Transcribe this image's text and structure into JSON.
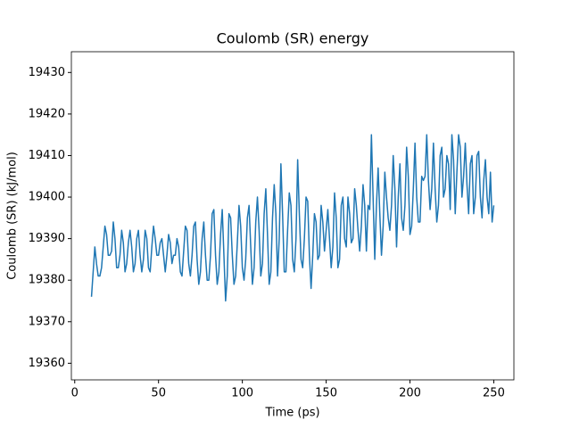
{
  "chart_data": {
    "type": "line",
    "title": "Coulomb (SR) energy",
    "x_label": "Time (ps)",
    "y_label": "Coulomb (SR) (kJ/mol)",
    "x": [
      10,
      11,
      12,
      13,
      14,
      15,
      16,
      17,
      18,
      19,
      20,
      21,
      22,
      23,
      24,
      25,
      26,
      27,
      28,
      29,
      30,
      31,
      32,
      33,
      34,
      35,
      36,
      37,
      38,
      39,
      40,
      41,
      42,
      43,
      44,
      45,
      46,
      47,
      48,
      49,
      50,
      51,
      52,
      53,
      54,
      55,
      56,
      57,
      58,
      59,
      60,
      61,
      62,
      63,
      64,
      65,
      66,
      67,
      68,
      69,
      70,
      71,
      72,
      73,
      74,
      75,
      76,
      77,
      78,
      79,
      80,
      81,
      82,
      83,
      84,
      85,
      86,
      87,
      88,
      89,
      90,
      91,
      92,
      93,
      94,
      95,
      96,
      97,
      98,
      99,
      100,
      101,
      102,
      103,
      104,
      105,
      106,
      107,
      108,
      109,
      110,
      111,
      112,
      113,
      114,
      115,
      116,
      117,
      118,
      119,
      120,
      121,
      122,
      123,
      124,
      125,
      126,
      127,
      128,
      129,
      130,
      131,
      132,
      133,
      134,
      135,
      136,
      137,
      138,
      139,
      140,
      141,
      142,
      143,
      144,
      145,
      146,
      147,
      148,
      149,
      150,
      151,
      152,
      153,
      154,
      155,
      156,
      157,
      158,
      159,
      160,
      161,
      162,
      163,
      164,
      165,
      166,
      167,
      168,
      169,
      170,
      171,
      172,
      173,
      174,
      175,
      176,
      177,
      178,
      179,
      180,
      181,
      182,
      183,
      184,
      185,
      186,
      187,
      188,
      189,
      190,
      191,
      192,
      193,
      194,
      195,
      196,
      197,
      198,
      199,
      200,
      201,
      202,
      203,
      204,
      205,
      206,
      207,
      208,
      209,
      210,
      211,
      212,
      213,
      214,
      215,
      216,
      217,
      218,
      219,
      220,
      221,
      222,
      223,
      224,
      225,
      226,
      227,
      228,
      229,
      230,
      231,
      232,
      233,
      234,
      235,
      236,
      237,
      238,
      239,
      240,
      241,
      242,
      243,
      244,
      245,
      246,
      247,
      248,
      249,
      250
    ],
    "series": [
      {
        "name": "Coulomb (SR)",
        "color": "#1f77b4",
        "values": [
          19376,
          19382,
          19388,
          19384,
          19381,
          19381,
          19383,
          19388,
          19393,
          19391,
          19386,
          19386,
          19387,
          19394,
          19390,
          19383,
          19383,
          19386,
          19392,
          19389,
          19382,
          19384,
          19389,
          19392,
          19388,
          19382,
          19384,
          19390,
          19392,
          19386,
          19382,
          19385,
          19392,
          19390,
          19383,
          19382,
          19388,
          19393,
          19390,
          19386,
          19386,
          19389,
          19390,
          19386,
          19382,
          19386,
          19391,
          19389,
          19384,
          19386,
          19386,
          19390,
          19388,
          19382,
          19381,
          19387,
          19393,
          19392,
          19384,
          19381,
          19386,
          19393,
          19394,
          19385,
          19379,
          19382,
          19390,
          19394,
          19386,
          19380,
          19380,
          19386,
          19396,
          19397,
          19386,
          19379,
          19382,
          19391,
          19397,
          19386,
          19375,
          19381,
          19396,
          19395,
          19386,
          19379,
          19381,
          19389,
          19398,
          19393,
          19383,
          19380,
          19385,
          19395,
          19398,
          19388,
          19379,
          19383,
          19394,
          19400,
          19392,
          19381,
          19384,
          19396,
          19402,
          19391,
          19379,
          19382,
          19395,
          19403,
          19396,
          19381,
          19390,
          19408,
          19396,
          19382,
          19382,
          19392,
          19401,
          19398,
          19385,
          19382,
          19390,
          19409,
          19396,
          19385,
          19383,
          19390,
          19400,
          19399,
          19386,
          19378,
          19386,
          19396,
          19394,
          19385,
          19386,
          19398,
          19394,
          19387,
          19392,
          19397,
          19390,
          19383,
          19388,
          19401,
          19395,
          19383,
          19385,
          19398,
          19400,
          19390,
          19388,
          19400,
          19396,
          19389,
          19390,
          19402,
          19398,
          19392,
          19387,
          19393,
          19403,
          19398,
          19387,
          19398,
          19397,
          19415,
          19400,
          19385,
          19398,
          19407,
          19396,
          19386,
          19393,
          19406,
          19400,
          19395,
          19392,
          19398,
          19410,
          19402,
          19388,
          19400,
          19408,
          19395,
          19392,
          19398,
          19412,
          19405,
          19391,
          19393,
          19402,
          19413,
          19400,
          19394,
          19394,
          19405,
          19404,
          19405,
          19415,
          19404,
          19397,
          19402,
          19413,
          19402,
          19394,
          19398,
          19410,
          19412,
          19400,
          19402,
          19410,
          19408,
          19397,
          19415,
          19409,
          19396,
          19406,
          19415,
          19412,
          19400,
          19405,
          19413,
          19403,
          19396,
          19408,
          19410,
          19396,
          19400,
          19410,
          19411,
          19400,
          19395,
          19404,
          19409,
          19400,
          19396,
          19406,
          19394,
          19398
        ]
      }
    ],
    "xlim": [
      -2,
      262
    ],
    "xticks": [
      0,
      50,
      100,
      150,
      200,
      250
    ],
    "ylim": [
      19356,
      19435
    ],
    "yticks": [
      19360,
      19370,
      19380,
      19390,
      19400,
      19410,
      19420,
      19430
    ]
  }
}
